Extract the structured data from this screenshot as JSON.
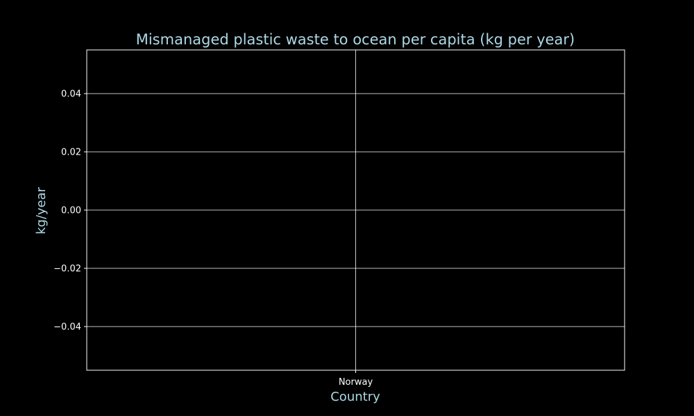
{
  "chart_data": {
    "type": "bar",
    "title": "Mismanaged plastic waste to ocean per capita (kg per year)",
    "xlabel": "Country",
    "ylabel": "kg/year",
    "categories": [
      "Norway"
    ],
    "values": [
      0
    ],
    "ylim": [
      -0.055,
      0.055
    ],
    "yticks": [
      -0.04,
      -0.02,
      0.0,
      0.02,
      0.04
    ],
    "ytick_labels": [
      "−0.04",
      "−0.02",
      "0.00",
      "0.02",
      "0.04"
    ],
    "grid": true,
    "colors": {
      "background": "#000000",
      "title": "#add8e6",
      "axis_label": "#add8e6",
      "tick": "#ffffff",
      "grid": "#ffffff",
      "spine": "#ffffff"
    }
  }
}
